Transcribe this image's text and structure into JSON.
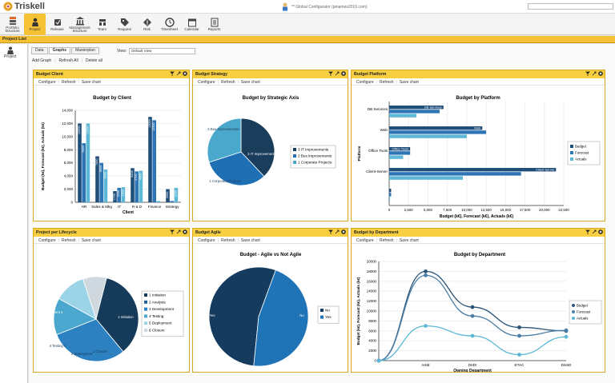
{
  "app": {
    "name": "Triskell",
    "user": "** Global Configurator (pmames2016.com)"
  },
  "nav": [
    {
      "label": "Portfolio Structure",
      "icon": "layers-icon"
    },
    {
      "label": "Project",
      "icon": "project-icon",
      "active": true
    },
    {
      "label": "Release",
      "icon": "release-icon"
    },
    {
      "label": "Management Structure",
      "icon": "building-icon"
    },
    {
      "label": "Team",
      "icon": "team-icon"
    },
    {
      "label": "Request",
      "icon": "tag-icon"
    },
    {
      "label": "Risk",
      "icon": "risk-icon"
    },
    {
      "label": "Timesheet",
      "icon": "clock-icon"
    },
    {
      "label": "Calendar",
      "icon": "calendar-icon"
    },
    {
      "label": "Reports",
      "icon": "reports-icon"
    }
  ],
  "project_list_title": "Project List",
  "sidebar_project": "Project",
  "tabs": [
    "Data",
    "Graphs",
    "Masterplan"
  ],
  "view": {
    "label": "View:",
    "value": "Default View"
  },
  "actions": [
    "Add Graph",
    "Refresh All",
    "Delete all"
  ],
  "panel_actions": [
    "Configure",
    "Refresh",
    "Save chart"
  ],
  "panels": {
    "client": {
      "title": "Budget Client"
    },
    "strategy": {
      "title": "Budget Strategy"
    },
    "platform": {
      "title": "Budget Platform"
    },
    "lifecycle": {
      "title": "Project per Lifecycle"
    },
    "agile": {
      "title": "Budget Agile"
    },
    "department": {
      "title": "Budget by Department"
    }
  },
  "colors": {
    "budget": "#1f4e79",
    "forecast": "#2e75b6",
    "actuals": "#5cb8d6",
    "accent": "#f5c235"
  },
  "chart_data": [
    {
      "id": "client",
      "type": "bar",
      "title": "Budget by Client",
      "xlabel": "Client",
      "ylabel": "Budget (k€), Forecast (k€), Actuals (k€)",
      "categories": [
        "HR",
        "Sales & Mkg",
        "IT",
        "R & D",
        "Finance",
        "Strategy"
      ],
      "ylim": [
        0,
        14000
      ],
      "yticks": [
        "0",
        "2,000",
        "4,000",
        "6,000",
        "8,000",
        "10,000",
        "12,000",
        "14,000"
      ],
      "series": [
        {
          "name": "Budget",
          "values": [
            12000,
            7000,
            1700,
            5200,
            13000,
            2000
          ]
        },
        {
          "name": "Forecast",
          "values": [
            9000,
            6000,
            2200,
            4700,
            12500,
            200
          ]
        },
        {
          "name": "Actuals",
          "values": [
            12000,
            5000,
            2300,
            4800,
            200,
            2200
          ]
        }
      ],
      "labels": [
        [
          "12000",
          "9000",
          "12000"
        ],
        [
          "7000",
          "6000",
          "5000"
        ],
        [
          "1700",
          "2200",
          "2300"
        ],
        [
          "5200",
          "4700",
          "4800"
        ],
        [
          "13000",
          "12500",
          ""
        ],
        [
          "2000",
          "",
          "2200"
        ]
      ]
    },
    {
      "id": "strategy",
      "type": "pie",
      "title": "Budget by Strategic Axis",
      "slices": [
        {
          "name": "3 IT Improvements",
          "value": 38,
          "label": "3 IT Improvements"
        },
        {
          "name": "2 Bus Improvements",
          "value": 32,
          "label": "2 Bus Improvements"
        },
        {
          "name": "1 Corporate Projects",
          "value": 30,
          "label": "1 Corporate Projects"
        }
      ]
    },
    {
      "id": "platform",
      "type": "bar",
      "orientation": "horizontal",
      "title": "Budget by Platform",
      "xlabel": "Budget (k€), Forecast (k€), Actuals (k€)",
      "ylabel": "Platform",
      "categories": [
        "DB Services",
        "Web",
        "Office Tools",
        "Client-Server",
        ""
      ],
      "xlim": [
        0,
        22500
      ],
      "xticks": [
        "0",
        "2,500",
        "5,000",
        "7,500",
        "10,000",
        "12,500",
        "15,000",
        "17,500",
        "20,000",
        "22,500"
      ],
      "series": [
        {
          "name": "Budget",
          "values": [
            7000,
            12000,
            2700,
            21500,
            250
          ]
        },
        {
          "name": "Forecast",
          "values": [
            6500,
            12500,
            2700,
            17000,
            250
          ]
        },
        {
          "name": "Actuals",
          "values": [
            3500,
            10000,
            1800,
            9500,
            100
          ]
        }
      ],
      "labels": [
        "DB Services",
        "Web",
        "Office Tools",
        "Client Server",
        ""
      ]
    },
    {
      "id": "lifecycle",
      "type": "pie",
      "title": "Project per Lifecycle",
      "slices": [
        {
          "name": "1 Initiation",
          "value": 35,
          "label": "1 Initiation"
        },
        {
          "name": "2 Analysis",
          "value": 0,
          "label": ""
        },
        {
          "name": "3 Development",
          "value": 30,
          "label": "Development 4"
        },
        {
          "name": "4 Testing",
          "value": 14,
          "label": "4 Testing 4"
        },
        {
          "name": "5 Deployment",
          "value": 12,
          "label": "1 Deployment"
        },
        {
          "name": "6 Closure",
          "value": 9,
          "label": "1 Closure"
        }
      ],
      "top_label": "2 Analysis 4"
    },
    {
      "id": "agile",
      "type": "pie",
      "title": "Budget - Agile vs Not Agile",
      "slices": [
        {
          "name": "No",
          "value": 54,
          "label": "No"
        },
        {
          "name": "Yes",
          "value": 46,
          "label": "Yes"
        }
      ]
    },
    {
      "id": "department",
      "type": "line",
      "title": "Budget by Department",
      "xlabel": "Owning Department",
      "ylabel": "Budget (k€), Forecast (k€), Actuals (k€)",
      "categories": [
        "",
        "AISE",
        "DIIDI",
        "ETAC",
        "DSSD"
      ],
      "ylim": [
        0,
        20000
      ],
      "yticks": [
        "0",
        "2000",
        "4000",
        "6000",
        "8000",
        "10000",
        "12000",
        "14000",
        "16000",
        "18000",
        "20000"
      ],
      "series": [
        {
          "name": "Budget",
          "values": [
            0,
            18000,
            10800,
            6700,
            6000
          ]
        },
        {
          "name": "Forecast",
          "values": [
            0,
            17200,
            9000,
            5000,
            6100
          ]
        },
        {
          "name": "Actuals",
          "values": [
            0,
            7000,
            5000,
            1200,
            4800
          ]
        }
      ]
    }
  ]
}
